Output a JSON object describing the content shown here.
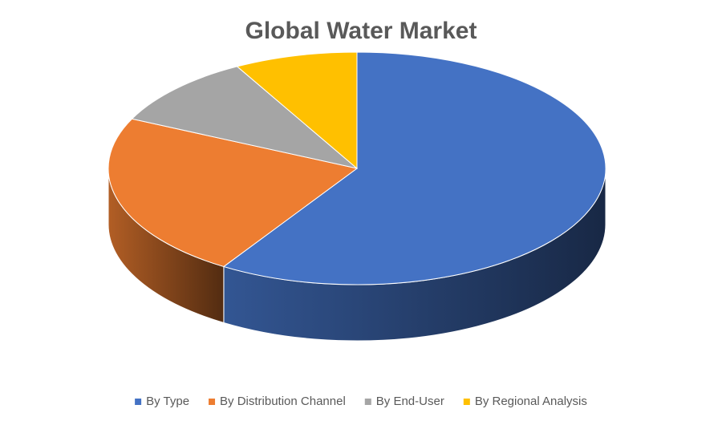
{
  "chart_data": {
    "type": "pie3d",
    "title": "Global Water Market",
    "categories": [
      "By Type",
      "By Distribution Channel",
      "By End-User",
      "By Regional Analysis"
    ],
    "values": [
      59,
      23,
      10,
      8
    ],
    "colors": [
      "#4472c4",
      "#ed7d31",
      "#a5a5a5",
      "#ffc000"
    ],
    "legend": "bottom"
  }
}
